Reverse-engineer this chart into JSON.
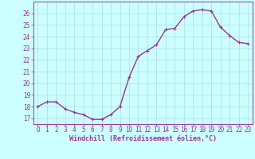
{
  "x": [
    0,
    1,
    2,
    3,
    4,
    5,
    6,
    7,
    8,
    9,
    10,
    11,
    12,
    13,
    14,
    15,
    16,
    17,
    18,
    19,
    20,
    21,
    22,
    23
  ],
  "y": [
    18.0,
    18.4,
    18.4,
    17.8,
    17.5,
    17.3,
    16.9,
    16.9,
    17.3,
    18.0,
    20.5,
    22.3,
    22.8,
    23.3,
    24.6,
    24.7,
    25.7,
    26.2,
    26.3,
    26.2,
    24.8,
    24.1,
    23.5,
    23.4
  ],
  "line_color": "#993399",
  "marker": "+",
  "marker_color": "#993399",
  "bg_color": "#ccffff",
  "grid_color": "#aadddd",
  "xlabel": "Windchill (Refroidissement éolien,°C)",
  "xlabel_color": "#993399",
  "tick_color": "#993399",
  "spine_color": "#993399",
  "ylim": [
    16.5,
    27.0
  ],
  "xlim": [
    -0.5,
    23.5
  ],
  "yticks": [
    17,
    18,
    19,
    20,
    21,
    22,
    23,
    24,
    25,
    26
  ],
  "xticks": [
    0,
    1,
    2,
    3,
    4,
    5,
    6,
    7,
    8,
    9,
    10,
    11,
    12,
    13,
    14,
    15,
    16,
    17,
    18,
    19,
    20,
    21,
    22,
    23
  ],
  "linewidth": 1.0,
  "markersize": 3.5,
  "tick_fontsize": 5.5,
  "xlabel_fontsize": 6.0
}
